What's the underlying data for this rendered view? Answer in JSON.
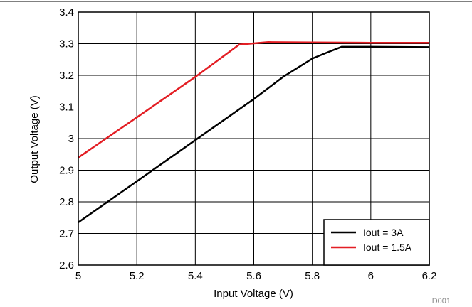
{
  "chart_data": {
    "type": "line",
    "xlabel": "Input Voltage (V)",
    "ylabel": "Output Voltage (V)",
    "xlim": [
      5,
      6.2
    ],
    "ylim": [
      2.6,
      3.4
    ],
    "xticks": [
      5,
      5.2,
      5.4,
      5.6,
      5.8,
      6,
      6.2
    ],
    "yticks": [
      2.6,
      2.7,
      2.8,
      2.9,
      3,
      3.1,
      3.2,
      3.3,
      3.4
    ],
    "xtick_labels": [
      "5",
      "5.2",
      "5.4",
      "5.6",
      "5.8",
      "6",
      "6.2"
    ],
    "ytick_labels": [
      "2.6",
      "2.7",
      "2.8",
      "2.9",
      "3",
      "3.1",
      "3.2",
      "3.3",
      "3.4"
    ],
    "grid": true,
    "legend_position": "bottom-right",
    "series": [
      {
        "name": "Iout = 3A",
        "color": "#000000",
        "x": [
          5.0,
          5.2,
          5.4,
          5.6,
          5.7,
          5.8,
          5.85,
          5.9,
          5.95,
          6.0,
          6.2
        ],
        "y": [
          2.735,
          2.865,
          2.995,
          3.125,
          3.195,
          3.253,
          3.272,
          3.29,
          3.29,
          3.29,
          3.289
        ]
      },
      {
        "name": "Iout = 1.5A",
        "color": "#e31e24",
        "x": [
          5.0,
          5.2,
          5.4,
          5.55,
          5.65,
          5.8,
          6.0,
          6.2
        ],
        "y": [
          2.94,
          3.067,
          3.195,
          3.297,
          3.305,
          3.304,
          3.303,
          3.303
        ]
      }
    ]
  },
  "figure_id": "D001"
}
